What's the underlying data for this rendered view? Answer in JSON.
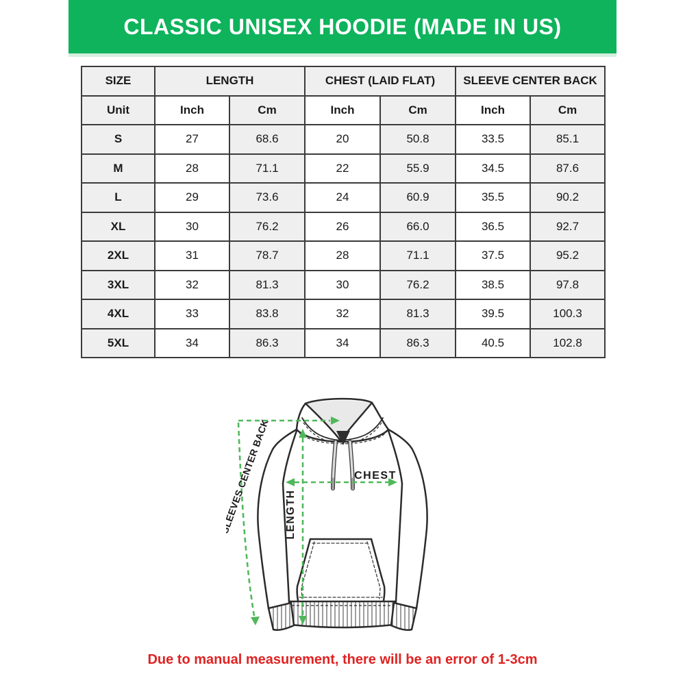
{
  "banner": {
    "title": "CLASSIC UNISEX HOODIE (MADE IN US)",
    "bg_color": "#0eb35c",
    "strip_color": "#d3eede",
    "text_color": "#ffffff"
  },
  "table": {
    "header_groups": [
      {
        "label": "SIZE",
        "colspan": 1
      },
      {
        "label": "LENGTH",
        "colspan": 2
      },
      {
        "label": "CHEST (LAID FLAT)",
        "colspan": 2
      },
      {
        "label": "SLEEVE CENTER BACK",
        "colspan": 2
      }
    ],
    "unit_row": [
      "Unit",
      "Inch",
      "Cm",
      "Inch",
      "Cm",
      "Inch",
      "Cm"
    ],
    "rows": [
      {
        "size": "S",
        "values": [
          "27",
          "68.6",
          "20",
          "50.8",
          "33.5",
          "85.1"
        ]
      },
      {
        "size": "M",
        "values": [
          "28",
          "71.1",
          "22",
          "55.9",
          "34.5",
          "87.6"
        ]
      },
      {
        "size": "L",
        "values": [
          "29",
          "73.6",
          "24",
          "60.9",
          "35.5",
          "90.2"
        ]
      },
      {
        "size": "XL",
        "values": [
          "30",
          "76.2",
          "26",
          "66.0",
          "36.5",
          "92.7"
        ]
      },
      {
        "size": "2XL",
        "values": [
          "31",
          "78.7",
          "28",
          "71.1",
          "37.5",
          "95.2"
        ]
      },
      {
        "size": "3XL",
        "values": [
          "32",
          "81.3",
          "30",
          "76.2",
          "38.5",
          "97.8"
        ]
      },
      {
        "size": "4XL",
        "values": [
          "33",
          "83.8",
          "32",
          "81.3",
          "39.5",
          "100.3"
        ]
      },
      {
        "size": "5XL",
        "values": [
          "34",
          "86.3",
          "34",
          "86.3",
          "40.5",
          "102.8"
        ]
      }
    ],
    "border_color": "#3b3b3b",
    "shade_color": "#efefef"
  },
  "diagram": {
    "labels": {
      "sleeve": "SLEEVES CENTER BACK",
      "chest": "CHEST",
      "length": "LENGTH"
    },
    "outline_color": "#2b2b2b",
    "measure_color": "#50b85a"
  },
  "note": {
    "text": "Due to manual measurement, there will be an error of 1-3cm",
    "color": "#e02222"
  }
}
